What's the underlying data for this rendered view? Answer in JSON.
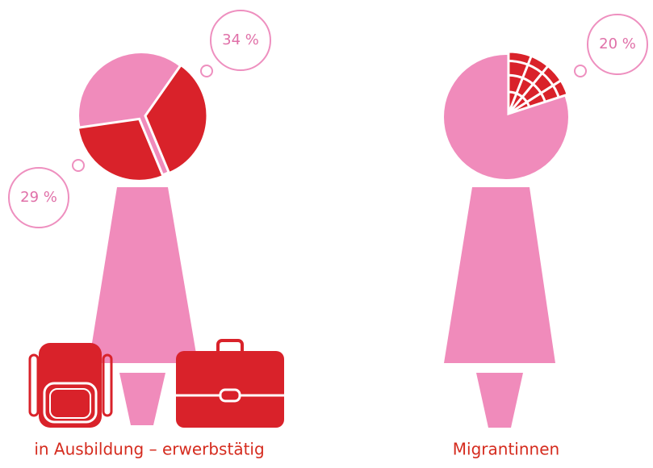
{
  "chart_data": [
    {
      "type": "pie",
      "title": "in Ausbildung – erwerbstätig",
      "values": [
        34,
        29
      ],
      "value_labels": [
        "34 %",
        "29 %"
      ],
      "color": "#d9222a",
      "hatch": false
    },
    {
      "type": "pie",
      "title": "Migrantinnen",
      "values": [
        20
      ],
      "value_labels": [
        "20 %"
      ],
      "color": "#d9222a",
      "hatch": true
    }
  ]
}
